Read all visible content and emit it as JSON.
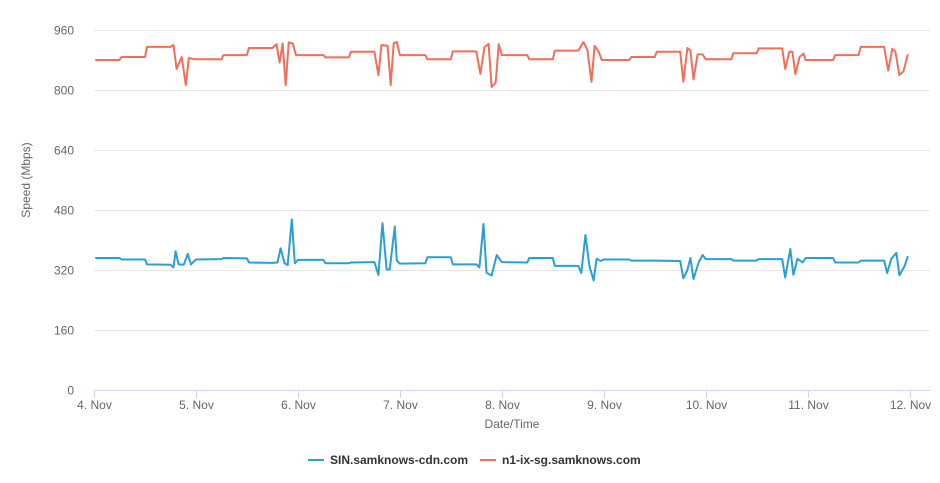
{
  "chart_data": {
    "type": "line",
    "title": "",
    "xlabel": "Date/Time",
    "ylabel": "Speed (Mbps)",
    "ylim": [
      0,
      960
    ],
    "yticks": [
      0,
      160,
      320,
      480,
      640,
      800,
      960
    ],
    "xlim": [
      0,
      8.2
    ],
    "xticks": [
      {
        "label": "4. Nov",
        "value": 0
      },
      {
        "label": "5. Nov",
        "value": 1
      },
      {
        "label": "6. Nov",
        "value": 2
      },
      {
        "label": "7. Nov",
        "value": 3
      },
      {
        "label": "8. Nov",
        "value": 4
      },
      {
        "label": "9. Nov",
        "value": 5
      },
      {
        "label": "10. Nov",
        "value": 6
      },
      {
        "label": "11. Nov",
        "value": 7
      },
      {
        "label": "12. Nov",
        "value": 8
      }
    ],
    "grid": "horizontal",
    "legend": "bottom-center",
    "series": [
      {
        "name": "SIN.samknows-cdn.com",
        "color": "#2b9fd4",
        "points": [
          [
            0.02,
            352
          ],
          [
            0.25,
            352
          ],
          [
            0.27,
            348
          ],
          [
            0.5,
            348
          ],
          [
            0.52,
            335
          ],
          [
            0.75,
            334
          ],
          [
            0.78,
            327
          ],
          [
            0.8,
            370
          ],
          [
            0.83,
            335
          ],
          [
            0.88,
            334
          ],
          [
            0.92,
            363
          ],
          [
            0.95,
            335
          ],
          [
            1.0,
            348
          ],
          [
            1.25,
            349
          ],
          [
            1.27,
            352
          ],
          [
            1.5,
            351
          ],
          [
            1.52,
            340
          ],
          [
            1.75,
            339
          ],
          [
            1.8,
            340
          ],
          [
            1.83,
            378
          ],
          [
            1.87,
            338
          ],
          [
            1.9,
            333
          ],
          [
            1.94,
            455
          ],
          [
            1.97,
            338
          ],
          [
            2.0,
            347
          ],
          [
            2.25,
            347
          ],
          [
            2.27,
            338
          ],
          [
            2.5,
            338
          ],
          [
            2.52,
            340
          ],
          [
            2.75,
            341
          ],
          [
            2.79,
            307
          ],
          [
            2.83,
            445
          ],
          [
            2.87,
            322
          ],
          [
            2.9,
            321
          ],
          [
            2.95,
            436
          ],
          [
            2.97,
            345
          ],
          [
            3.0,
            337
          ],
          [
            3.25,
            338
          ],
          [
            3.27,
            354
          ],
          [
            3.5,
            354
          ],
          [
            3.52,
            335
          ],
          [
            3.75,
            335
          ],
          [
            3.78,
            327
          ],
          [
            3.82,
            443
          ],
          [
            3.85,
            313
          ],
          [
            3.9,
            305
          ],
          [
            3.95,
            360
          ],
          [
            4.0,
            341
          ],
          [
            4.25,
            340
          ],
          [
            4.27,
            352
          ],
          [
            4.5,
            352
          ],
          [
            4.52,
            331
          ],
          [
            4.75,
            331
          ],
          [
            4.78,
            312
          ],
          [
            4.82,
            413
          ],
          [
            4.86,
            330
          ],
          [
            4.9,
            292
          ],
          [
            4.93,
            350
          ],
          [
            4.97,
            344
          ],
          [
            5.0,
            348
          ],
          [
            5.25,
            348
          ],
          [
            5.27,
            345
          ],
          [
            5.5,
            345
          ],
          [
            5.75,
            344
          ],
          [
            5.78,
            298
          ],
          [
            5.82,
            320
          ],
          [
            5.85,
            352
          ],
          [
            5.88,
            296
          ],
          [
            5.93,
            340
          ],
          [
            5.97,
            360
          ],
          [
            6.0,
            349
          ],
          [
            6.25,
            349
          ],
          [
            6.27,
            345
          ],
          [
            6.5,
            345
          ],
          [
            6.52,
            349
          ],
          [
            6.75,
            349
          ],
          [
            6.78,
            300
          ],
          [
            6.83,
            376
          ],
          [
            6.86,
            307
          ],
          [
            6.9,
            350
          ],
          [
            6.95,
            340
          ],
          [
            6.98,
            352
          ],
          [
            7.25,
            352
          ],
          [
            7.27,
            340
          ],
          [
            7.5,
            340
          ],
          [
            7.52,
            345
          ],
          [
            7.75,
            345
          ],
          [
            7.78,
            312
          ],
          [
            7.82,
            350
          ],
          [
            7.87,
            366
          ],
          [
            7.9,
            306
          ],
          [
            7.95,
            330
          ],
          [
            7.98,
            355
          ]
        ]
      },
      {
        "name": "n1-ix-sg.samknows.com",
        "color": "#ef6f5b",
        "points": [
          [
            0.02,
            880
          ],
          [
            0.25,
            880
          ],
          [
            0.27,
            888
          ],
          [
            0.5,
            888
          ],
          [
            0.52,
            915
          ],
          [
            0.75,
            915
          ],
          [
            0.78,
            920
          ],
          [
            0.81,
            856
          ],
          [
            0.86,
            888
          ],
          [
            0.9,
            813
          ],
          [
            0.93,
            885
          ],
          [
            1.0,
            882
          ],
          [
            1.25,
            882
          ],
          [
            1.27,
            893
          ],
          [
            1.5,
            893
          ],
          [
            1.52,
            912
          ],
          [
            1.75,
            912
          ],
          [
            1.79,
            922
          ],
          [
            1.82,
            873
          ],
          [
            1.85,
            924
          ],
          [
            1.88,
            813
          ],
          [
            1.91,
            927
          ],
          [
            1.95,
            924
          ],
          [
            1.98,
            893
          ],
          [
            2.25,
            893
          ],
          [
            2.27,
            887
          ],
          [
            2.5,
            887
          ],
          [
            2.52,
            902
          ],
          [
            2.75,
            902
          ],
          [
            2.79,
            840
          ],
          [
            2.82,
            920
          ],
          [
            2.88,
            918
          ],
          [
            2.91,
            813
          ],
          [
            2.94,
            925
          ],
          [
            2.97,
            928
          ],
          [
            3.0,
            893
          ],
          [
            3.25,
            893
          ],
          [
            3.27,
            882
          ],
          [
            3.5,
            882
          ],
          [
            3.52,
            903
          ],
          [
            3.75,
            903
          ],
          [
            3.79,
            843
          ],
          [
            3.83,
            915
          ],
          [
            3.87,
            923
          ],
          [
            3.9,
            808
          ],
          [
            3.94,
            820
          ],
          [
            3.97,
            922
          ],
          [
            4.0,
            893
          ],
          [
            4.25,
            893
          ],
          [
            4.27,
            882
          ],
          [
            4.5,
            882
          ],
          [
            4.52,
            905
          ],
          [
            4.75,
            905
          ],
          [
            4.8,
            928
          ],
          [
            4.84,
            907
          ],
          [
            4.88,
            822
          ],
          [
            4.91,
            918
          ],
          [
            4.95,
            902
          ],
          [
            4.98,
            880
          ],
          [
            5.25,
            880
          ],
          [
            5.27,
            888
          ],
          [
            5.5,
            888
          ],
          [
            5.52,
            902
          ],
          [
            5.75,
            902
          ],
          [
            5.78,
            822
          ],
          [
            5.82,
            912
          ],
          [
            5.85,
            905
          ],
          [
            5.88,
            828
          ],
          [
            5.92,
            895
          ],
          [
            5.97,
            895
          ],
          [
            6.0,
            882
          ],
          [
            6.25,
            882
          ],
          [
            6.27,
            898
          ],
          [
            6.5,
            898
          ],
          [
            6.52,
            911
          ],
          [
            6.75,
            911
          ],
          [
            6.78,
            856
          ],
          [
            6.82,
            902
          ],
          [
            6.85,
            902
          ],
          [
            6.88,
            842
          ],
          [
            6.92,
            888
          ],
          [
            6.96,
            897
          ],
          [
            6.98,
            880
          ],
          [
            7.25,
            880
          ],
          [
            7.27,
            893
          ],
          [
            7.5,
            893
          ],
          [
            7.52,
            915
          ],
          [
            7.75,
            915
          ],
          [
            7.79,
            852
          ],
          [
            7.83,
            910
          ],
          [
            7.86,
            903
          ],
          [
            7.9,
            840
          ],
          [
            7.94,
            850
          ],
          [
            7.98,
            893
          ]
        ]
      }
    ]
  }
}
